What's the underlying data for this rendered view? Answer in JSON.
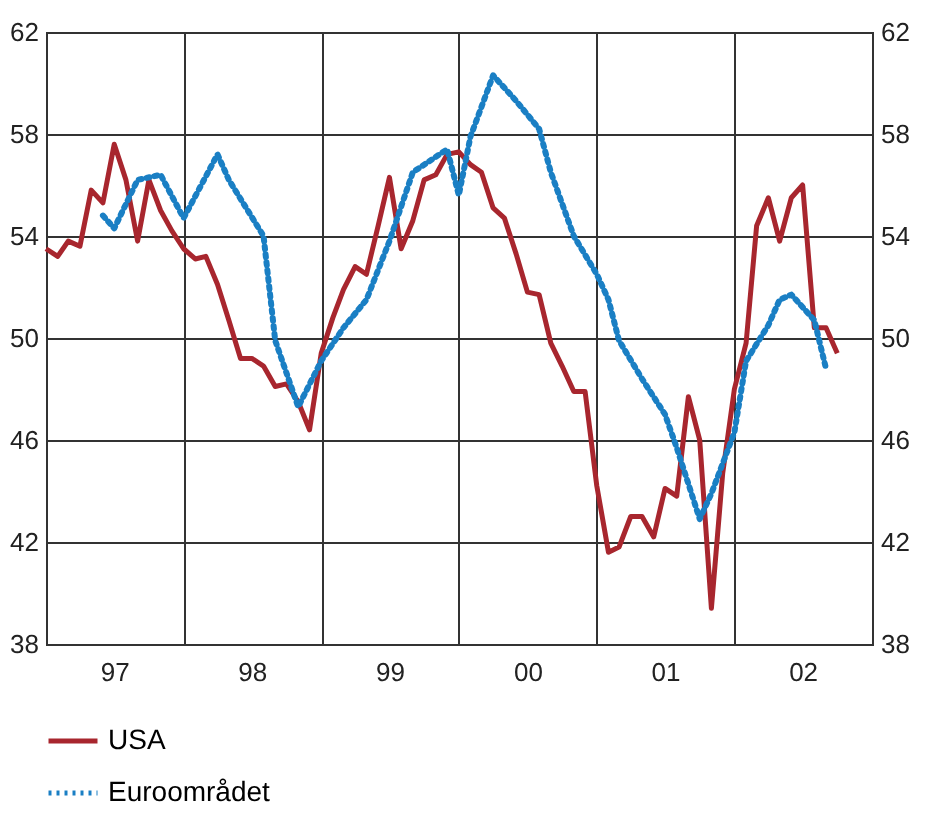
{
  "chart_data": {
    "type": "line",
    "xlim": [
      "1997-01",
      "2003-01"
    ],
    "xticks": [
      {
        "value": "1997-01",
        "label": null
      },
      {
        "value": "1997-07",
        "label": "97"
      },
      {
        "value": "1998-01",
        "label": null
      },
      {
        "value": "1998-07",
        "label": "98"
      },
      {
        "value": "1999-01",
        "label": null
      },
      {
        "value": "1999-07",
        "label": "99"
      },
      {
        "value": "2000-01",
        "label": null
      },
      {
        "value": "2000-07",
        "label": "00"
      },
      {
        "value": "2001-01",
        "label": null
      },
      {
        "value": "2001-07",
        "label": "01"
      },
      {
        "value": "2002-01",
        "label": null
      },
      {
        "value": "2002-07",
        "label": "02"
      },
      {
        "value": "2003-01",
        "label": null
      }
    ],
    "ylim": [
      38,
      62
    ],
    "yticks": [
      38,
      42,
      46,
      50,
      54,
      58,
      62
    ],
    "y2lim": [
      38,
      62
    ],
    "y2ticks": [
      38,
      42,
      46,
      50,
      54,
      58,
      62
    ],
    "grid": true,
    "legend": "bottom left",
    "marker": "none",
    "series": [
      {
        "name": "USA",
        "color": "#a8262e",
        "line_style": "solid",
        "x": [
          "1997-01",
          "1997-02",
          "1997-03",
          "1997-04",
          "1997-05",
          "1997-06",
          "1997-07",
          "1997-08",
          "1997-09",
          "1997-10",
          "1997-11",
          "1997-12",
          "1998-01",
          "1998-02",
          "1998-03",
          "1998-04",
          "1998-05",
          "1998-06",
          "1998-07",
          "1998-08",
          "1998-09",
          "1998-10",
          "1998-11",
          "1998-12",
          "1999-01",
          "1999-02",
          "1999-03",
          "1999-04",
          "1999-05",
          "1999-06",
          "1999-07",
          "1999-08",
          "1999-09",
          "1999-10",
          "1999-11",
          "1999-12",
          "2000-01",
          "2000-02",
          "2000-03",
          "2000-04",
          "2000-05",
          "2000-06",
          "2000-07",
          "2000-08",
          "2000-09",
          "2000-10",
          "2000-11",
          "2000-12",
          "2001-01",
          "2001-02",
          "2001-03",
          "2001-04",
          "2001-05",
          "2001-06",
          "2001-07",
          "2001-08",
          "2001-09",
          "2001-10",
          "2001-11",
          "2001-12",
          "2002-01",
          "2002-02",
          "2002-03",
          "2002-04",
          "2002-05",
          "2002-06",
          "2002-07",
          "2002-08",
          "2002-09",
          "2002-10"
        ],
        "values": [
          53.5,
          53.2,
          53.8,
          53.6,
          55.8,
          55.3,
          57.6,
          56.2,
          53.8,
          56.2,
          55.0,
          54.2,
          53.5,
          53.1,
          53.2,
          52.1,
          50.7,
          49.2,
          49.2,
          48.9,
          48.1,
          48.2,
          47.5,
          46.4,
          49.4,
          50.8,
          51.9,
          52.8,
          52.5,
          54.4,
          56.3,
          53.5,
          54.6,
          56.2,
          56.4,
          57.2,
          57.3,
          56.8,
          56.5,
          55.1,
          54.7,
          53.3,
          51.8,
          51.7,
          49.8,
          48.9,
          47.9,
          47.9,
          44.2,
          41.6,
          41.8,
          43.0,
          43.0,
          42.2,
          44.1,
          43.8,
          47.7,
          46.0,
          39.4,
          44.7,
          48.0,
          49.8,
          54.4,
          55.5,
          53.8,
          55.5,
          56.0,
          50.4,
          50.4,
          49.4
        ]
      },
      {
        "name": "Euroområdet",
        "color": "#1a7fc4",
        "line_style": "dotted",
        "x": [
          "1997-06",
          "1997-07",
          "1997-09",
          "1997-11",
          "1998-01",
          "1998-04",
          "1998-05",
          "1998-08",
          "1998-09",
          "1998-11",
          "1999-01",
          "1999-03",
          "1999-05",
          "1999-07",
          "1999-09",
          "1999-12",
          "2000-01",
          "2000-02",
          "2000-04",
          "2000-06",
          "2000-08",
          "2000-09",
          "2000-11",
          "2001-01",
          "2001-02",
          "2001-03",
          "2001-05",
          "2001-07",
          "2001-08",
          "2001-10",
          "2001-11",
          "2002-01",
          "2002-02",
          "2002-04",
          "2002-05",
          "2002-06",
          "2002-08",
          "2002-09"
        ],
        "values": [
          54.8,
          54.3,
          56.2,
          56.4,
          54.7,
          57.2,
          56.2,
          54.0,
          49.9,
          47.3,
          49.1,
          50.4,
          51.5,
          53.8,
          56.5,
          57.4,
          55.6,
          57.9,
          60.3,
          59.3,
          58.2,
          56.5,
          54.0,
          52.5,
          51.5,
          49.9,
          48.4,
          47.0,
          45.7,
          42.9,
          43.9,
          46.3,
          49.1,
          50.5,
          51.5,
          51.7,
          50.7,
          48.8
        ]
      }
    ]
  }
}
